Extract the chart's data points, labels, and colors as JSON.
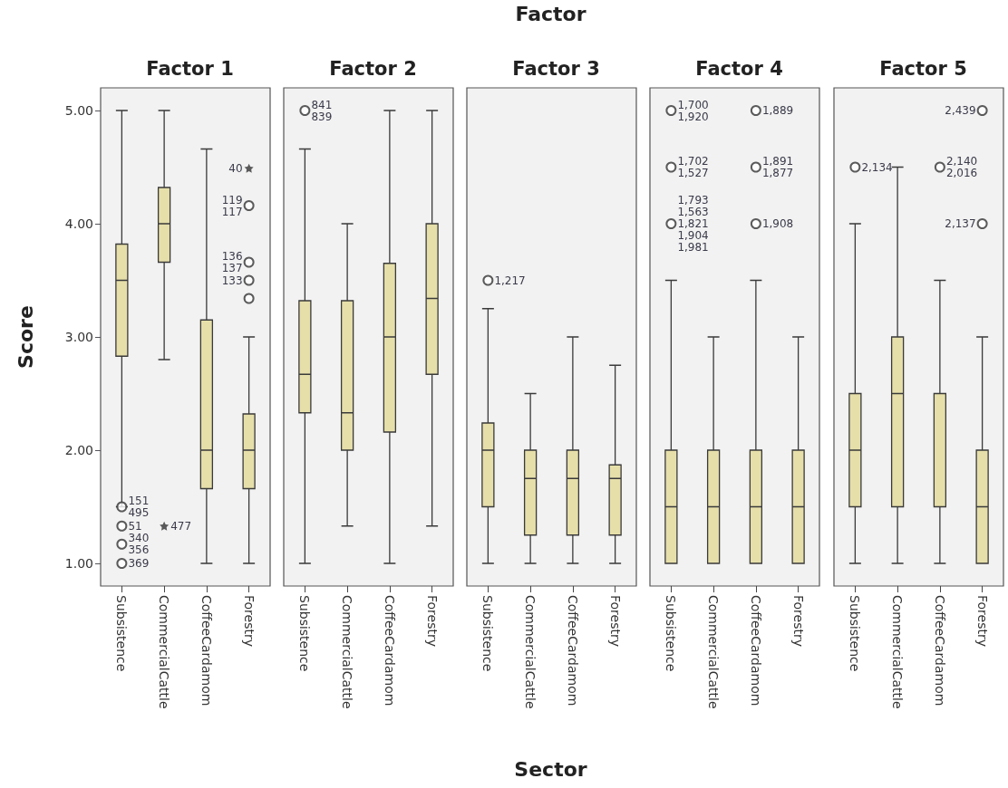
{
  "chart_data": [
    {
      "type": "box",
      "title": "Factor 1",
      "ylabel": "Score",
      "categories": [
        "Subsistence",
        "CommercialCattle",
        "CoffeeCardamom",
        "Forestry"
      ],
      "ylim": [
        0.8,
        5.2
      ],
      "yticks": [
        {
          "value": 1,
          "label": "1.00"
        },
        {
          "value": 2,
          "label": "2.00"
        },
        {
          "value": 3,
          "label": "3.00"
        },
        {
          "value": 4,
          "label": "4.00"
        },
        {
          "value": 5,
          "label": "5.00"
        }
      ],
      "series": [
        {
          "color": "#e6dfaa",
          "boxes": [
            {
              "low": 1.5,
              "q1": 2.83,
              "median": 3.5,
              "q3": 3.82,
              "high": 5.0
            },
            {
              "low": 2.8,
              "q1": 3.66,
              "median": 4.0,
              "q3": 4.32,
              "high": 5.0
            },
            {
              "low": 1.0,
              "q1": 1.66,
              "median": 2.0,
              "q3": 3.15,
              "high": 4.66
            },
            {
              "low": 1.0,
              "q1": 1.66,
              "median": 2.0,
              "q3": 2.32,
              "high": 3.0
            }
          ]
        },
        {
          "type": "scatter",
          "marker": "circle",
          "color": "#333333",
          "x": [
            "Subsistence",
            "Subsistence",
            "Subsistence",
            "Subsistence",
            "Forestry",
            "Forestry",
            "Forestry",
            "Forestry"
          ],
          "values": [
            1.5,
            1.33,
            1.17,
            1.0,
            4.16,
            3.66,
            3.5,
            3.34
          ]
        },
        {
          "type": "scatter",
          "marker": "star",
          "color": "#333333",
          "x": [
            "Forestry",
            "CommercialCattle"
          ],
          "values": [
            4.49,
            1.33
          ]
        }
      ],
      "annotations": [
        {
          "text": "40",
          "x": "Forestry",
          "y": 4.49
        },
        {
          "text": "119",
          "x": "Forestry",
          "y": 4.16
        },
        {
          "text": "117",
          "x": "Forestry",
          "y": 4.16
        },
        {
          "text": "136",
          "x": "Forestry",
          "y": 3.66
        },
        {
          "text": "137",
          "x": "Forestry",
          "y": 3.66
        },
        {
          "text": "133",
          "x": "Forestry",
          "y": 3.5
        },
        {
          "text": "151",
          "x": "Subsistence",
          "y": 1.5
        },
        {
          "text": "495",
          "x": "Subsistence",
          "y": 1.5
        },
        {
          "text": "477",
          "x": "CommercialCattle",
          "y": 1.33
        },
        {
          "text": "51",
          "x": "Subsistence",
          "y": 1.33
        },
        {
          "text": "340",
          "x": "Subsistence",
          "y": 1.17
        },
        {
          "text": "356",
          "x": "Subsistence",
          "y": 1.17
        },
        {
          "text": "369",
          "x": "Subsistence",
          "y": 1.0
        }
      ]
    },
    {
      "type": "box",
      "title": "Factor 2",
      "categories": [
        "Subsistence",
        "CommercialCattle",
        "CoffeeCardamom",
        "Forestry"
      ],
      "ylim": [
        0.8,
        5.2
      ],
      "tick_labels": "x",
      "series": [
        {
          "type": "scatter",
          "marker": "circle",
          "color": "#333333",
          "x": [
            "Subsistence"
          ],
          "values": [
            5.0
          ]
        },
        {
          "color": "#e6dfaa",
          "boxes": [
            {
              "low": 1.0,
              "q1": 2.33,
              "median": 2.67,
              "q3": 3.32,
              "high": 4.66
            },
            {
              "low": 1.33,
              "q1": 2.0,
              "median": 2.33,
              "q3": 3.32,
              "high": 4.0
            },
            {
              "low": 1.0,
              "q1": 2.16,
              "median": 3.0,
              "q3": 3.65,
              "high": 5.0
            },
            {
              "low": 1.33,
              "q1": 2.67,
              "median": 3.34,
              "q3": 4.0,
              "high": 5.0
            }
          ]
        }
      ],
      "annotations": [
        {
          "text": "841",
          "x": "Subsistence",
          "y": 5.0
        },
        {
          "text": "839",
          "x": "Subsistence",
          "y": 5.0
        }
      ]
    },
    {
      "type": "box",
      "title": "Factor 3",
      "xlabel": "Sector",
      "categories": [
        "Subsistence",
        "CommercialCattle",
        "CoffeeCardamom",
        "Forestry"
      ],
      "ylim": [
        0.8,
        5.2
      ],
      "tick_labels": "x",
      "series": [
        {
          "type": "scatter",
          "marker": "circle",
          "color": "#333333",
          "x": [
            "Subsistence"
          ],
          "values": [
            3.5
          ]
        },
        {
          "color": "#e6dfaa",
          "boxes": [
            {
              "low": 1.0,
              "q1": 1.5,
              "median": 2.0,
              "q3": 2.24,
              "high": 3.25
            },
            {
              "low": 1.0,
              "q1": 1.25,
              "median": 1.75,
              "q3": 2.0,
              "high": 2.5
            },
            {
              "low": 1.0,
              "q1": 1.25,
              "median": 1.75,
              "q3": 2.0,
              "high": 3.0
            },
            {
              "low": 1.0,
              "q1": 1.25,
              "median": 1.75,
              "q3": 1.87,
              "high": 2.75
            }
          ]
        }
      ],
      "annotations": [
        "Factor",
        {
          "text": "1,217",
          "x": "Subsistence",
          "y": 3.5
        }
      ]
    },
    {
      "type": "box",
      "title": "Factor 4",
      "categories": [
        "Subsistence",
        "CommercialCattle",
        "CoffeeCardamom",
        "Forestry"
      ],
      "ylim": [
        0.8,
        5.2
      ],
      "tick_labels": "x",
      "series": [
        {
          "type": "scatter",
          "marker": "circle",
          "color": "#333333",
          "x": [
            "Subsistence",
            "Subsistence",
            "Subsistence",
            "CoffeeCardamom",
            "CoffeeCardamom",
            "CoffeeCardamom"
          ],
          "values": [
            5.0,
            4.5,
            4.0,
            5.0,
            4.5,
            4.0
          ]
        },
        {
          "color": "#e6dfaa",
          "boxes": [
            {
              "low": 1.0,
              "q1": 1.0,
              "median": 1.5,
              "q3": 2.0,
              "high": 3.5
            },
            {
              "low": 1.0,
              "q1": 1.0,
              "median": 1.5,
              "q3": 2.0,
              "high": 3.0
            },
            {
              "low": 1.0,
              "q1": 1.0,
              "median": 1.5,
              "q3": 2.0,
              "high": 3.5
            },
            {
              "low": 1.0,
              "q1": 1.0,
              "median": 1.5,
              "q3": 2.0,
              "high": 3.0
            }
          ]
        }
      ],
      "annotations": [
        {
          "text": "1,700",
          "x": "Subsistence",
          "y": 5.0
        },
        {
          "text": "1,920",
          "x": "Subsistence",
          "y": 5.0
        },
        {
          "text": "1,889",
          "x": "CoffeeCardamom",
          "y": 5.0
        },
        {
          "text": "1,702",
          "x": "Subsistence",
          "y": 4.5
        },
        {
          "text": "1,527",
          "x": "Subsistence",
          "y": 4.5
        },
        {
          "text": "1,891",
          "x": "CoffeeCardamom",
          "y": 4.5
        },
        {
          "text": "1,877",
          "x": "CoffeeCardamom",
          "y": 4.5
        },
        {
          "text": "1,793",
          "x": "Subsistence",
          "y": 4.0
        },
        {
          "text": "1,563",
          "x": "Subsistence",
          "y": 4.0
        },
        {
          "text": "1,821",
          "x": "Subsistence",
          "y": 4.0
        },
        {
          "text": "1,904",
          "x": "Subsistence",
          "y": 4.0
        },
        {
          "text": "1,981",
          "x": "Subsistence",
          "y": 4.0
        },
        {
          "text": "1,908",
          "x": "CoffeeCardamom",
          "y": 4.0
        }
      ]
    },
    {
      "type": "box",
      "title": "Factor 5",
      "categories": [
        "Subsistence",
        "CommercialCattle",
        "CoffeeCardamom",
        "Forestry"
      ],
      "ylim": [
        0.8,
        5.2
      ],
      "tick_labels": "x",
      "series": [
        {
          "type": "scatter",
          "marker": "circle",
          "color": "#333333",
          "x": [
            "Subsistence",
            "CoffeeCardamom",
            "Forestry",
            "Forestry"
          ],
          "values": [
            4.5,
            4.5,
            5.0,
            4.0
          ]
        },
        {
          "color": "#e6dfaa",
          "boxes": [
            {
              "low": 1.0,
              "q1": 1.5,
              "median": 2.0,
              "q3": 2.5,
              "high": 4.0
            },
            {
              "low": 1.0,
              "q1": 1.5,
              "median": 2.5,
              "q3": 3.0,
              "high": 4.5
            },
            {
              "low": 1.0,
              "q1": 1.5,
              "median": 1.5,
              "q3": 2.5,
              "high": 3.5
            },
            {
              "low": 1.0,
              "q1": 1.0,
              "median": 1.5,
              "q3": 2.0,
              "high": 3.0
            }
          ]
        }
      ],
      "annotations": [
        {
          "text": "2,439",
          "x": "Forestry",
          "y": 5.0
        },
        {
          "text": "2,140",
          "x": "CoffeeCardamom",
          "y": 4.5
        },
        {
          "text": "2,134",
          "x": "Subsistence",
          "y": 4.5
        },
        {
          "text": "2,016",
          "x": "CoffeeCardamom",
          "y": 4.5
        },
        {
          "text": "2,137",
          "x": "Forestry",
          "y": 4.0
        }
      ]
    }
  ]
}
